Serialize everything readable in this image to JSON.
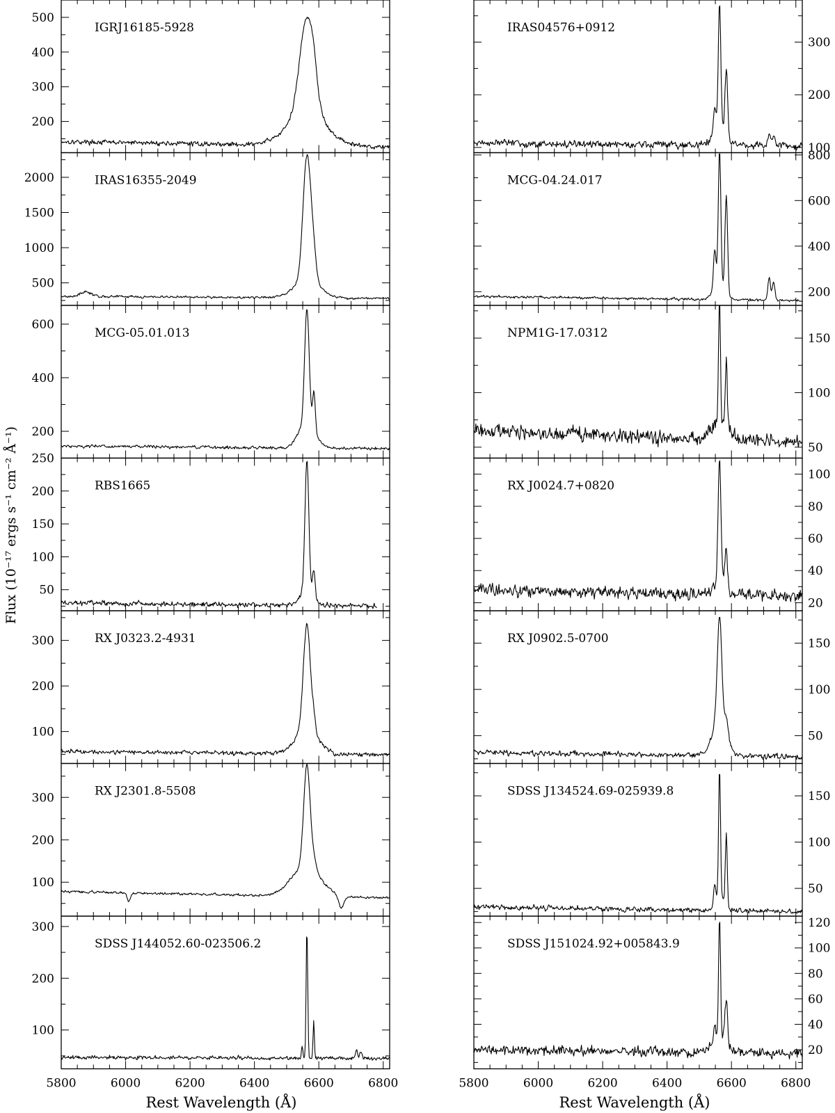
{
  "figure": {
    "ylabel": "Flux (10⁻¹⁷ ergs s⁻¹ cm⁻² Å⁻¹)",
    "xlabel": "Rest Wavelength (Å)",
    "xticks": [
      5800,
      6000,
      6200,
      6400,
      6600,
      6800
    ]
  },
  "chart_data": [
    {
      "type": "line",
      "name": "IGRJ16185-5928",
      "xlabel": "",
      "ylabel": "",
      "xlim": [
        5800,
        6820
      ],
      "ylim": [
        110,
        550
      ],
      "yticks": [
        200,
        300,
        400,
        500
      ],
      "baseline": 142,
      "noise": 7,
      "slope": -15,
      "lines": [
        {
          "x": 6563,
          "amp": 280,
          "sigma": 22
        },
        {
          "x": 6563,
          "amp": 90,
          "sigma": 60
        },
        {
          "x": 6585,
          "amp": 40,
          "sigma": 8
        }
      ],
      "dips": []
    },
    {
      "type": "line",
      "name": "IRAS16355-2049",
      "xlabel": "",
      "ylabel": "",
      "xlim": [
        5800,
        6820
      ],
      "ylim": [
        180,
        2350
      ],
      "yticks": [
        500,
        1000,
        1500,
        2000
      ],
      "baseline": 310,
      "noise": 18,
      "slope": -30,
      "lines": [
        {
          "x": 6563,
          "amp": 1750,
          "sigma": 12
        },
        {
          "x": 6563,
          "amp": 250,
          "sigma": 40
        },
        {
          "x": 6583,
          "amp": 350,
          "sigma": 9
        },
        {
          "x": 5876,
          "amp": 70,
          "sigma": 15
        }
      ],
      "dips": []
    },
    {
      "type": "line",
      "name": "MCG-05.01.013",
      "xlabel": "",
      "ylabel": "",
      "xlim": [
        5800,
        6820
      ],
      "ylim": [
        100,
        670
      ],
      "yticks": [
        200,
        400,
        600
      ],
      "baseline": 145,
      "noise": 6,
      "slope": -10,
      "lines": [
        {
          "x": 6563,
          "amp": 420,
          "sigma": 7
        },
        {
          "x": 6563,
          "amp": 100,
          "sigma": 25
        },
        {
          "x": 6585,
          "amp": 140,
          "sigma": 4
        }
      ],
      "dips": []
    },
    {
      "type": "line",
      "name": "RBS1665",
      "xlabel": "",
      "ylabel": "",
      "xlim": [
        5800,
        6820
      ],
      "ylim": [
        18,
        250
      ],
      "yticks": [
        50,
        100,
        150,
        200,
        250
      ],
      "baseline": 30,
      "noise": 4,
      "slope": -5,
      "xend": 6780,
      "lines": [
        {
          "x": 6563,
          "amp": 195,
          "sigma": 6
        },
        {
          "x": 6563,
          "amp": 25,
          "sigma": 20
        },
        {
          "x": 6585,
          "amp": 40,
          "sigma": 4
        }
      ],
      "dips": []
    },
    {
      "type": "line",
      "name": "RX J0323.2-4931",
      "xlabel": "",
      "ylabel": "",
      "xlim": [
        5800,
        6820
      ],
      "ylim": [
        30,
        365
      ],
      "yticks": [
        100,
        200,
        300
      ],
      "baseline": 57,
      "noise": 5,
      "slope": -8,
      "lines": [
        {
          "x": 6563,
          "amp": 230,
          "sigma": 11
        },
        {
          "x": 6563,
          "amp": 55,
          "sigma": 35
        },
        {
          "x": 6585,
          "amp": 20,
          "sigma": 5
        }
      ],
      "dips": []
    },
    {
      "type": "line",
      "name": "RX J2301.8-5508",
      "xlabel": "",
      "ylabel": "",
      "xlim": [
        5800,
        6820
      ],
      "ylim": [
        20,
        380
      ],
      "yticks": [
        100,
        200,
        300
      ],
      "baseline": 78,
      "noise": 3,
      "slope": -15,
      "lines": [
        {
          "x": 6563,
          "amp": 240,
          "sigma": 10
        },
        {
          "x": 6560,
          "amp": 70,
          "sigma": 45
        },
        {
          "x": 6585,
          "amp": 25,
          "sigma": 8
        }
      ],
      "dips": [
        {
          "x": 6010,
          "amp": 20,
          "sigma": 5
        },
        {
          "x": 6670,
          "amp": 30,
          "sigma": 8
        }
      ]
    },
    {
      "type": "line",
      "name": "SDSS J144052.60-023506.2",
      "xlabel": "",
      "ylabel": "",
      "xlim": [
        5800,
        6820
      ],
      "ylim": [
        25,
        320
      ],
      "yticks": [
        100,
        200,
        300
      ],
      "baseline": 47,
      "noise": 4,
      "slope": -2,
      "lines": [
        {
          "x": 6563,
          "amp": 250,
          "sigma": 2.5
        },
        {
          "x": 6584,
          "amp": 75,
          "sigma": 2
        },
        {
          "x": 6548,
          "amp": 25,
          "sigma": 2
        },
        {
          "x": 6717,
          "amp": 15,
          "sigma": 3
        },
        {
          "x": 6731,
          "amp": 12,
          "sigma": 3
        }
      ],
      "dips": []
    },
    {
      "type": "line",
      "name": "IRAS04576+0912",
      "xlabel": "",
      "ylabel": "",
      "xlim": [
        5800,
        6820
      ],
      "ylim": [
        90,
        380
      ],
      "yticks": [
        100,
        200,
        300
      ],
      "baseline": 108,
      "noise": 7,
      "slope": -5,
      "lines": [
        {
          "x": 6563,
          "amp": 240,
          "sigma": 4
        },
        {
          "x": 6584,
          "amp": 130,
          "sigma": 4
        },
        {
          "x": 6548,
          "amp": 50,
          "sigma": 4
        },
        {
          "x": 6563,
          "amp": 30,
          "sigma": 20
        },
        {
          "x": 6717,
          "amp": 20,
          "sigma": 5
        },
        {
          "x": 6731,
          "amp": 15,
          "sigma": 5
        }
      ],
      "dips": []
    },
    {
      "type": "line",
      "name": "MCG-04.24.017",
      "xlabel": "",
      "ylabel": "",
      "xlim": [
        5800,
        6820
      ],
      "ylim": [
        140,
        810
      ],
      "yticks": [
        200,
        400,
        600,
        800
      ],
      "baseline": 180,
      "noise": 6,
      "slope": -20,
      "lines": [
        {
          "x": 6563,
          "amp": 600,
          "sigma": 4
        },
        {
          "x": 6584,
          "amp": 430,
          "sigma": 4
        },
        {
          "x": 6548,
          "amp": 180,
          "sigma": 4
        },
        {
          "x": 6563,
          "amp": 60,
          "sigma": 18
        },
        {
          "x": 6717,
          "amp": 100,
          "sigma": 4
        },
        {
          "x": 6731,
          "amp": 80,
          "sigma": 4
        }
      ],
      "dips": []
    },
    {
      "type": "line",
      "name": "NPM1G-17.0312",
      "xlabel": "",
      "ylabel": "",
      "xlim": [
        5800,
        6820
      ],
      "ylim": [
        40,
        180
      ],
      "yticks": [
        50,
        100,
        150
      ],
      "baseline": 65,
      "noise": 7,
      "slope": -10,
      "lines": [
        {
          "x": 6563,
          "amp": 110,
          "sigma": 3
        },
        {
          "x": 6584,
          "amp": 60,
          "sigma": 3
        },
        {
          "x": 6563,
          "amp": 15,
          "sigma": 25
        }
      ],
      "dips": []
    },
    {
      "type": "line",
      "name": "RX J0024.7+0820",
      "xlabel": "",
      "ylabel": "",
      "xlim": [
        5800,
        6820
      ],
      "ylim": [
        15,
        110
      ],
      "yticks": [
        20,
        40,
        60,
        80,
        100
      ],
      "baseline": 28,
      "noise": 4,
      "slope": -4,
      "lines": [
        {
          "x": 6563,
          "amp": 75,
          "sigma": 4
        },
        {
          "x": 6584,
          "amp": 25,
          "sigma": 4
        },
        {
          "x": 6563,
          "amp": 12,
          "sigma": 15
        }
      ],
      "dips": []
    },
    {
      "type": "line",
      "name": "RX J0902.5-0700",
      "xlabel": "",
      "ylabel": "",
      "xlim": [
        5800,
        6820
      ],
      "ylim": [
        20,
        185
      ],
      "yticks": [
        50,
        100,
        150
      ],
      "baseline": 32,
      "noise": 3,
      "slope": -5,
      "lines": [
        {
          "x": 6563,
          "amp": 110,
          "sigma": 7
        },
        {
          "x": 6563,
          "amp": 40,
          "sigma": 22
        },
        {
          "x": 6585,
          "amp": 15,
          "sigma": 5
        }
      ],
      "dips": []
    },
    {
      "type": "line",
      "name": "SDSS J134524.69-025939.8",
      "xlabel": "",
      "ylabel": "",
      "xlim": [
        5800,
        6820
      ],
      "ylim": [
        20,
        185
      ],
      "yticks": [
        50,
        100,
        150
      ],
      "baseline": 30,
      "noise": 3,
      "slope": -5,
      "lines": [
        {
          "x": 6563,
          "amp": 140,
          "sigma": 3
        },
        {
          "x": 6584,
          "amp": 80,
          "sigma": 3
        },
        {
          "x": 6563,
          "amp": 15,
          "sigma": 14
        },
        {
          "x": 6548,
          "amp": 20,
          "sigma": 3
        }
      ],
      "dips": []
    },
    {
      "type": "line",
      "name": "SDSS J151024.92+005843.9",
      "xlabel": "",
      "ylabel": "",
      "xlim": [
        5800,
        6820
      ],
      "ylim": [
        5,
        125
      ],
      "yticks": [
        20,
        40,
        60,
        80,
        100,
        120
      ],
      "baseline": 20,
      "noise": 4,
      "slope": -3,
      "lines": [
        {
          "x": 6563,
          "amp": 95,
          "sigma": 3
        },
        {
          "x": 6584,
          "amp": 35,
          "sigma": 4
        },
        {
          "x": 6548,
          "amp": 12,
          "sigma": 4
        },
        {
          "x": 6563,
          "amp": 12,
          "sigma": 20
        }
      ],
      "dips": []
    }
  ]
}
